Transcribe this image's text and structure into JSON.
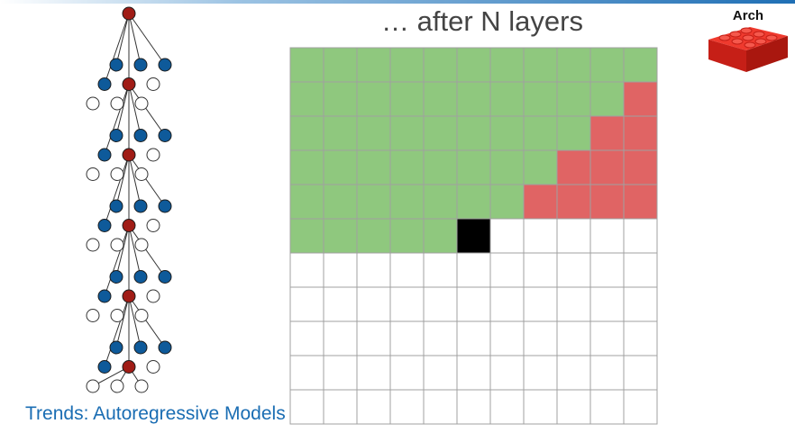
{
  "slide": {
    "title": "… after N layers",
    "footer": "Trends: Autoregressive Models",
    "tag_label": "Arch"
  },
  "colors": {
    "context": "#8fc87e",
    "masked": "#e06464",
    "current": "#000000",
    "empty": "#ffffff",
    "gridline": "#a0a0a0",
    "tree_root": "#a01c16",
    "tree_node": "#0e5a9a",
    "tree_empty": "#ffffff",
    "brick": "#d8281e",
    "accent_text": "#1a6db3"
  },
  "icons": {
    "tag_icon": "lego-brick-icon"
  },
  "grid": {
    "rows": 11,
    "cols": 11,
    "cells": [
      "GGGGGGGGGGG",
      "GGGGGGGGGGR",
      "GGGGGGGGGRR",
      "GGGGGGGGRRR",
      "GGGGGGGRRRR",
      "GGGGGBWWWWW",
      "WWWWWWWWWWW",
      "WWWWWWWWWWW",
      "WWWWWWWWWWW",
      "WWWWWWWWWWW",
      "WWWWWWWWWWW"
    ]
  },
  "tree": {
    "levels": 5
  }
}
